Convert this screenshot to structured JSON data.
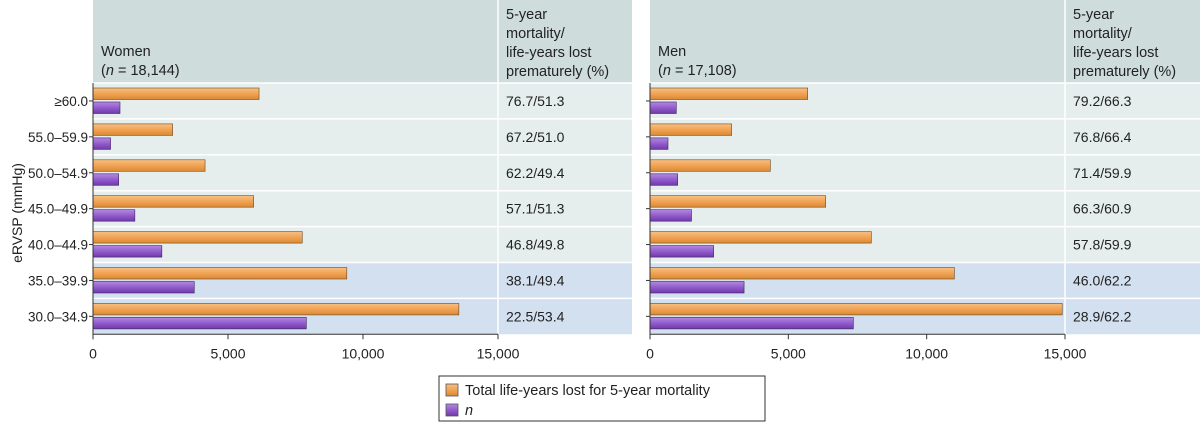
{
  "colors": {
    "header_bg": "#cfdcdc",
    "row_bg": "#e5eeec",
    "row_bg_highlight": "#d3e0f0",
    "bar_total": "#f0a050",
    "bar_n": "#8f58c9",
    "axis": "#333333"
  },
  "y_axis_label": "eRVSP (mmHg)",
  "column_header": {
    "line1": "5-year",
    "line2": "mortality/",
    "line3": "life-years lost",
    "line4": "prematurely (%)"
  },
  "legend": {
    "total_label": "Total life-years lost for 5-year mortality",
    "n_label": "n"
  },
  "chart_data": [
    {
      "type": "bar",
      "orientation": "horizontal",
      "panel_title": "Women",
      "panel_n_prefix": "n",
      "panel_n_value": " = 18,144)",
      "panel_n_open": "(",
      "categories": [
        "≥60.0",
        "55.0–59.9",
        "50.0–54.9",
        "45.0–49.9",
        "40.0–44.9",
        "35.0–39.9",
        "30.0–34.9"
      ],
      "highlight_rows": [
        5,
        6
      ],
      "series": [
        {
          "name": "Total life-years lost for 5-year mortality",
          "values": [
            6150,
            2950,
            4150,
            5950,
            7750,
            9400,
            13550
          ]
        },
        {
          "name": "n",
          "values": [
            1000,
            650,
            950,
            1550,
            2550,
            3750,
            7900
          ]
        }
      ],
      "mortality_labels": [
        "76.7/51.3",
        "67.2/51.0",
        "62.2/49.4",
        "57.1/51.3",
        "46.8/49.8",
        "38.1/49.4",
        "22.5/53.4"
      ],
      "xlim": [
        0,
        15000
      ],
      "xticks": [
        0,
        5000,
        10000,
        15000
      ],
      "xtick_labels": [
        "0",
        "5,000",
        "10,000",
        "15,000"
      ]
    },
    {
      "type": "bar",
      "orientation": "horizontal",
      "panel_title": "Men",
      "panel_n_prefix": "n",
      "panel_n_value": " = 17,108)",
      "panel_n_open": "(",
      "categories": [
        "≥60.0",
        "55.0–59.9",
        "50.0–54.9",
        "45.0–49.9",
        "40.0–44.9",
        "35.0–39.9",
        "30.0–34.9"
      ],
      "highlight_rows": [
        5,
        6
      ],
      "series": [
        {
          "name": "Total life-years lost for 5-year mortality",
          "values": [
            5700,
            2950,
            4350,
            6350,
            8000,
            11000,
            14900
          ]
        },
        {
          "name": "n",
          "values": [
            950,
            650,
            1000,
            1500,
            2300,
            3400,
            7350
          ]
        }
      ],
      "mortality_labels": [
        "79.2/66.3",
        "76.8/66.4",
        "71.4/59.9",
        "66.3/60.9",
        "57.8/59.9",
        "46.0/62.2",
        "28.9/62.2"
      ],
      "xlim": [
        0,
        15000
      ],
      "xticks": [
        0,
        5000,
        10000,
        15000
      ],
      "xtick_labels": [
        "0",
        "5,000",
        "10,000",
        "15,000"
      ]
    }
  ]
}
